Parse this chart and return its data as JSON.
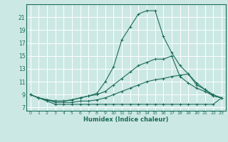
{
  "xlabel": "Humidex (Indice chaleur)",
  "background_color": "#cce8e4",
  "grid_color": "#ffffff",
  "line_color": "#1a6b5a",
  "x_values": [
    0,
    1,
    2,
    3,
    4,
    5,
    6,
    7,
    8,
    9,
    10,
    11,
    12,
    13,
    14,
    15,
    16,
    17,
    18,
    19,
    20,
    21,
    22,
    23
  ],
  "series": [
    [
      9.0,
      8.5,
      8.0,
      7.5,
      7.5,
      7.5,
      7.5,
      7.5,
      7.5,
      7.5,
      7.5,
      7.5,
      7.5,
      7.5,
      7.5,
      7.5,
      7.5,
      7.5,
      7.5,
      7.5,
      7.5,
      7.5,
      7.5,
      8.5
    ],
    [
      9.0,
      8.5,
      8.2,
      7.8,
      7.8,
      7.8,
      8.0,
      8.0,
      8.2,
      8.5,
      9.0,
      9.5,
      10.0,
      10.5,
      11.0,
      11.3,
      11.5,
      11.8,
      12.0,
      12.2,
      10.5,
      9.8,
      9.0,
      8.5
    ],
    [
      9.0,
      8.5,
      8.2,
      8.0,
      8.0,
      8.2,
      8.5,
      8.8,
      9.0,
      9.5,
      10.5,
      11.5,
      12.5,
      13.5,
      14.0,
      14.5,
      14.5,
      15.0,
      11.8,
      10.8,
      10.0,
      9.5,
      8.8,
      8.5
    ],
    [
      9.0,
      8.5,
      8.2,
      8.0,
      8.0,
      8.2,
      8.5,
      8.8,
      9.2,
      11.0,
      13.3,
      17.5,
      19.5,
      21.5,
      22.0,
      22.0,
      18.0,
      15.5,
      13.5,
      12.2,
      10.8,
      9.8,
      8.8,
      8.5
    ]
  ],
  "ylim": [
    6.5,
    23.0
  ],
  "xlim": [
    -0.5,
    23.5
  ],
  "yticks": [
    7,
    9,
    11,
    13,
    15,
    17,
    19,
    21
  ],
  "xticks": [
    0,
    1,
    2,
    3,
    4,
    5,
    6,
    7,
    8,
    9,
    10,
    11,
    12,
    13,
    14,
    15,
    16,
    17,
    18,
    19,
    20,
    21,
    22,
    23
  ],
  "figsize": [
    3.2,
    2.0
  ],
  "dpi": 100
}
